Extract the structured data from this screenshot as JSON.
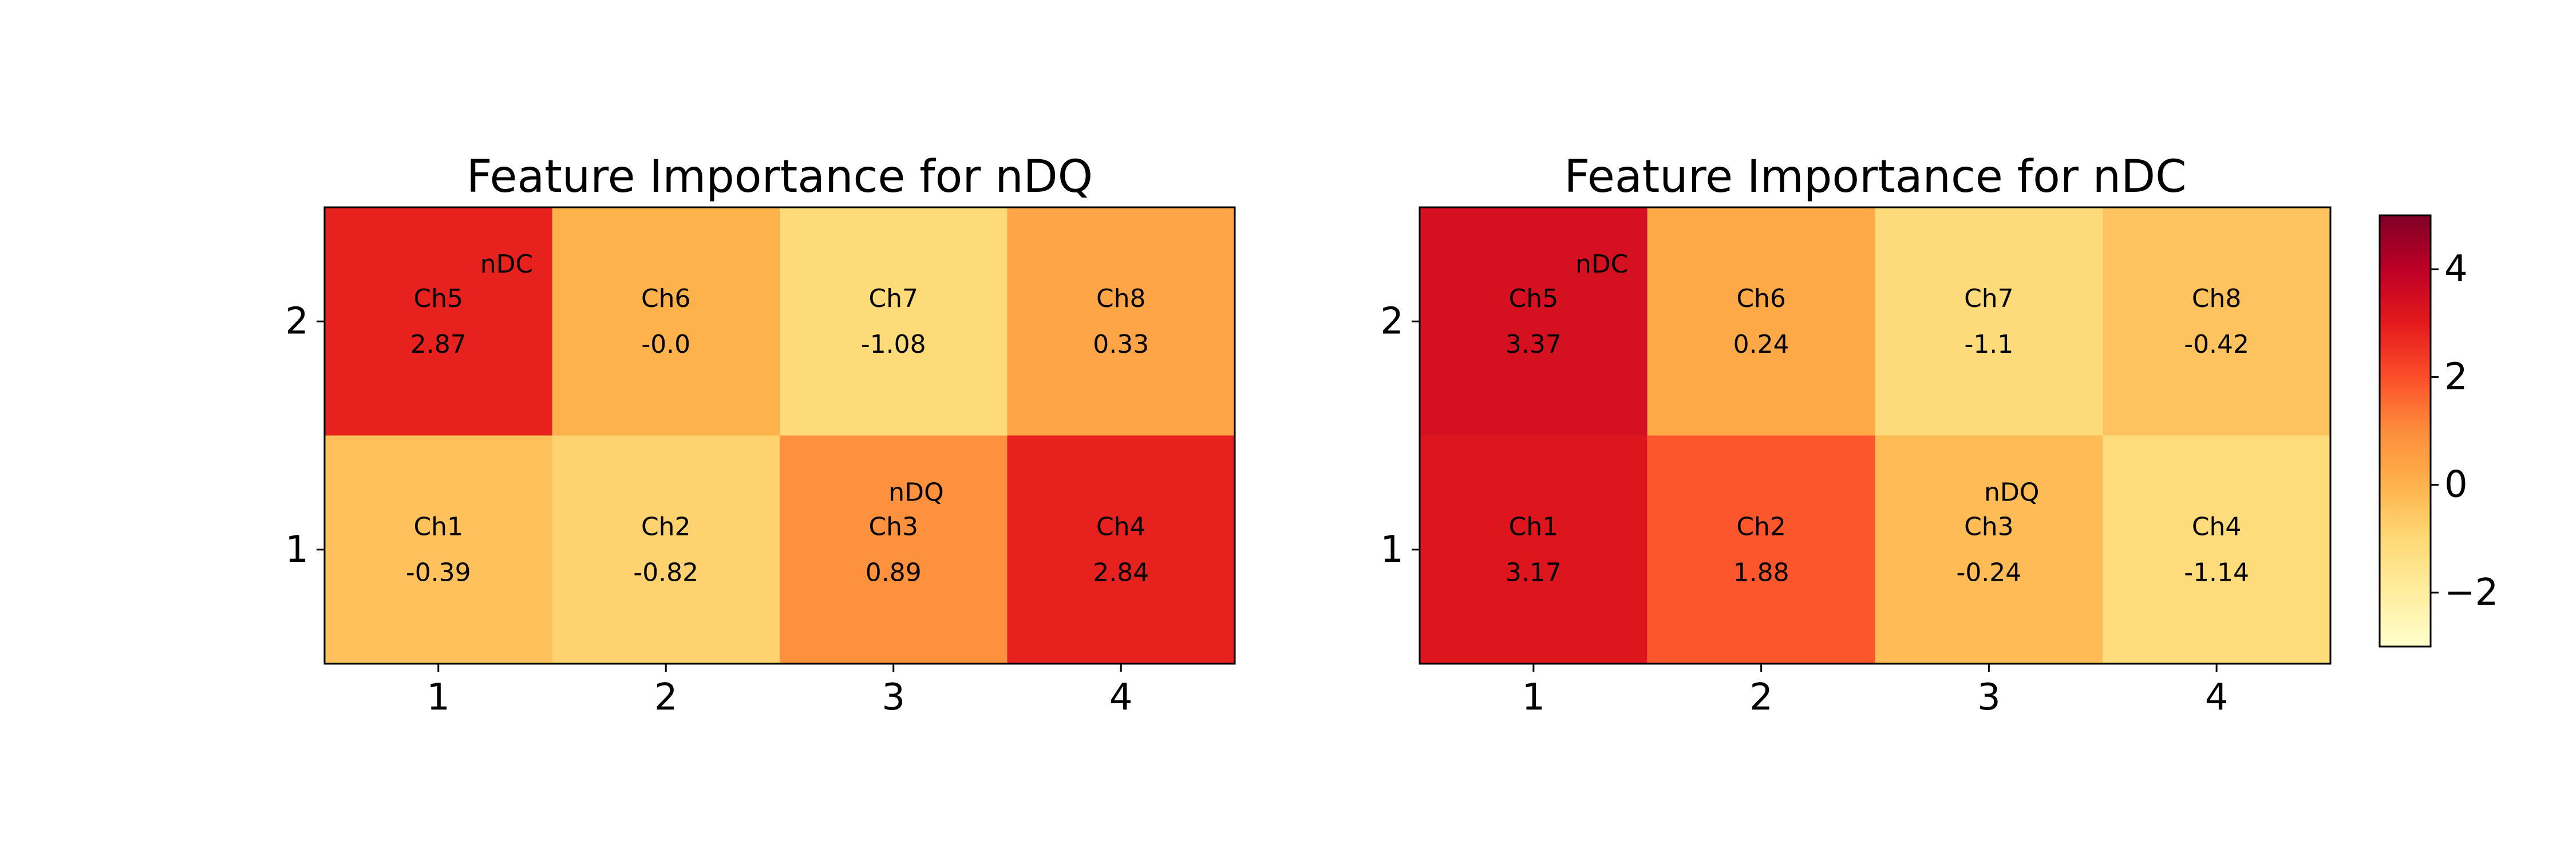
{
  "chart_data": [
    {
      "type": "heatmap",
      "title": "Feature Importance for nDQ",
      "x": [
        1,
        2,
        3,
        4
      ],
      "y": [
        1,
        2
      ],
      "xticks": [
        "1",
        "2",
        "3",
        "4"
      ],
      "yticks": [
        "1",
        "2"
      ],
      "cells": [
        {
          "x": 1,
          "y": 1,
          "label": "Ch1",
          "value": -0.39,
          "text": "-0.39"
        },
        {
          "x": 2,
          "y": 1,
          "label": "Ch2",
          "value": -0.82,
          "text": "-0.82"
        },
        {
          "x": 3,
          "y": 1,
          "label": "Ch3",
          "value": 0.89,
          "text": "0.89"
        },
        {
          "x": 4,
          "y": 1,
          "label": "Ch4",
          "value": 2.84,
          "text": "2.84"
        },
        {
          "x": 1,
          "y": 2,
          "label": "Ch5",
          "value": 2.87,
          "text": "2.87"
        },
        {
          "x": 2,
          "y": 2,
          "label": "Ch6",
          "value": -0.0,
          "text": "-0.0"
        },
        {
          "x": 3,
          "y": 2,
          "label": "Ch7",
          "value": -1.08,
          "text": "-1.08"
        },
        {
          "x": 4,
          "y": 2,
          "label": "Ch8",
          "value": 0.33,
          "text": "0.33"
        }
      ],
      "annotations": [
        {
          "text": "nDC",
          "x": 1.3,
          "y": 2.25
        },
        {
          "text": "nDQ",
          "x": 3.1,
          "y": 1.25
        }
      ],
      "xlim": [
        0.5,
        4.5
      ],
      "ylim": [
        0.5,
        2.5
      ],
      "colormap": "YlOrRd",
      "vmin": -3,
      "vmax": 5
    },
    {
      "type": "heatmap",
      "title": "Feature Importance for nDC",
      "x": [
        1,
        2,
        3,
        4
      ],
      "y": [
        1,
        2
      ],
      "xticks": [
        "1",
        "2",
        "3",
        "4"
      ],
      "yticks": [
        "1",
        "2"
      ],
      "cells": [
        {
          "x": 1,
          "y": 1,
          "label": "Ch1",
          "value": 3.17,
          "text": "3.17"
        },
        {
          "x": 2,
          "y": 1,
          "label": "Ch2",
          "value": 1.88,
          "text": "1.88"
        },
        {
          "x": 3,
          "y": 1,
          "label": "Ch3",
          "value": -0.24,
          "text": "-0.24"
        },
        {
          "x": 4,
          "y": 1,
          "label": "Ch4",
          "value": -1.14,
          "text": "-1.14"
        },
        {
          "x": 1,
          "y": 2,
          "label": "Ch5",
          "value": 3.37,
          "text": "3.37"
        },
        {
          "x": 2,
          "y": 2,
          "label": "Ch6",
          "value": 0.24,
          "text": "0.24"
        },
        {
          "x": 3,
          "y": 2,
          "label": "Ch7",
          "value": -1.1,
          "text": "-1.1"
        },
        {
          "x": 4,
          "y": 2,
          "label": "Ch8",
          "value": -0.42,
          "text": "-0.42"
        }
      ],
      "annotations": [
        {
          "text": "nDC",
          "x": 1.3,
          "y": 2.25
        },
        {
          "text": "nDQ",
          "x": 3.1,
          "y": 1.25
        }
      ],
      "xlim": [
        0.5,
        4.5
      ],
      "ylim": [
        0.5,
        2.5
      ],
      "colormap": "YlOrRd",
      "vmin": -3,
      "vmax": 5
    }
  ],
  "colorbar": {
    "ticks": [
      "−2",
      "0",
      "2",
      "4"
    ],
    "tick_values": [
      -2,
      0,
      2,
      4
    ],
    "vmin": -3,
    "vmax": 5,
    "colors": [
      "#ffffcc",
      "#ffeda0",
      "#fed976",
      "#feb24c",
      "#fd8d3c",
      "#fc4e2a",
      "#e31a1c",
      "#bd0026",
      "#800026"
    ]
  }
}
